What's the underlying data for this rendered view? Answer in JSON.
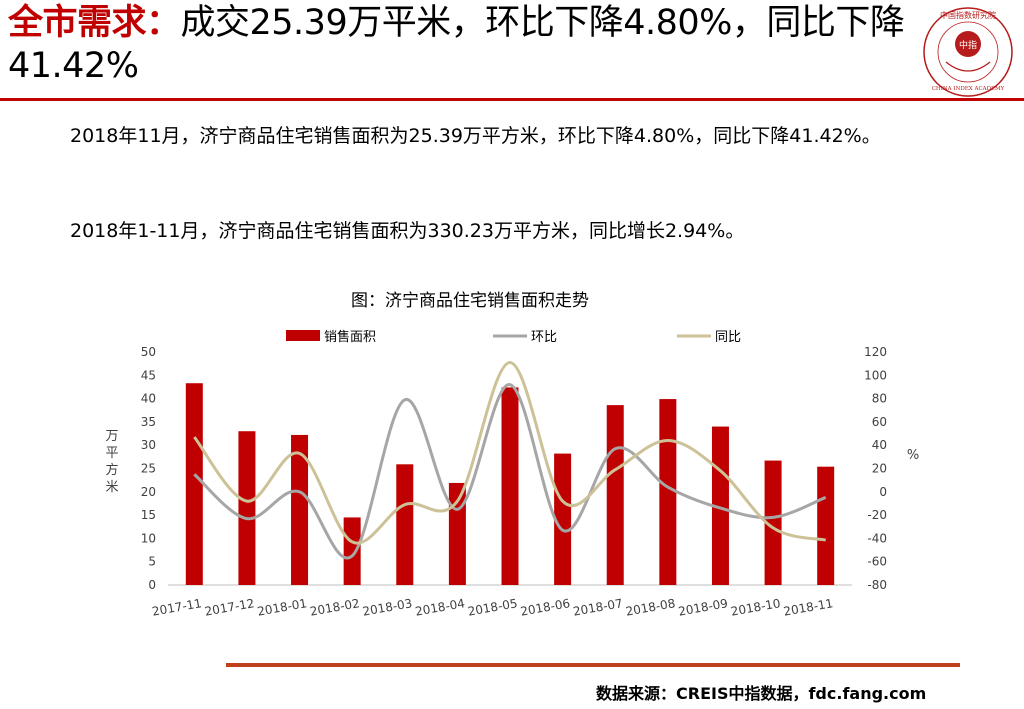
{
  "header": {
    "title_red": "全市需求：",
    "title_rest": "成交25.39万平米，环比下降4.80%，同比下降41.42%"
  },
  "logo": {
    "arc_text": "中国指数研究院",
    "inner_text": "中指",
    "bottom_text": "CHINA INDEX ACADEMY",
    "color": "#b71c1c"
  },
  "body": {
    "para1": "2018年11月，济宁商品住宅销售面积为25.39万平方米，环比下降4.80%，同比下降41.42%。",
    "para2": "2018年1-11月，济宁商品住宅销售面积为330.23万平方米，同比增长2.94%。"
  },
  "chart_data": {
    "type": "bar",
    "title": "图：济宁商品住宅销售面积走势",
    "categories": [
      "2017-11",
      "2017-12",
      "2018-01",
      "2018-02",
      "2018-03",
      "2018-04",
      "2018-05",
      "2018-06",
      "2018-07",
      "2018-08",
      "2018-09",
      "2018-10",
      "2018-11"
    ],
    "ylabel": "万平方米",
    "y2label": "%",
    "ylim": [
      0,
      50
    ],
    "y2lim": [
      -80,
      120
    ],
    "yticks": [
      0,
      5,
      10,
      15,
      20,
      25,
      30,
      35,
      40,
      45,
      50
    ],
    "y2ticks": [
      -80,
      -60,
      -40,
      -20,
      0,
      20,
      40,
      60,
      80,
      100,
      120
    ],
    "legend_position": "top",
    "series": [
      {
        "name": "销售面积",
        "kind": "bar",
        "axis": "left",
        "color": "#c00000",
        "values": [
          43.3,
          33.0,
          32.2,
          14.5,
          25.9,
          21.9,
          42.4,
          28.2,
          38.6,
          39.9,
          34.0,
          26.7,
          25.39
        ]
      },
      {
        "name": "环比",
        "kind": "line",
        "axis": "right",
        "color": "#a6a6a6",
        "values": [
          15,
          -23,
          0,
          -55,
          79,
          -15,
          92,
          -33,
          37,
          4,
          -14,
          -22,
          -4.8
        ]
      },
      {
        "name": "同比",
        "kind": "line",
        "axis": "right",
        "color": "#ccc197",
        "values": [
          47,
          -8,
          33,
          -43,
          -11,
          -8,
          111,
          -8,
          19,
          44,
          18,
          -31,
          -41.42
        ]
      }
    ]
  },
  "footer": {
    "source": "数据来源：CREIS中指数据，fdc.fang.com"
  }
}
